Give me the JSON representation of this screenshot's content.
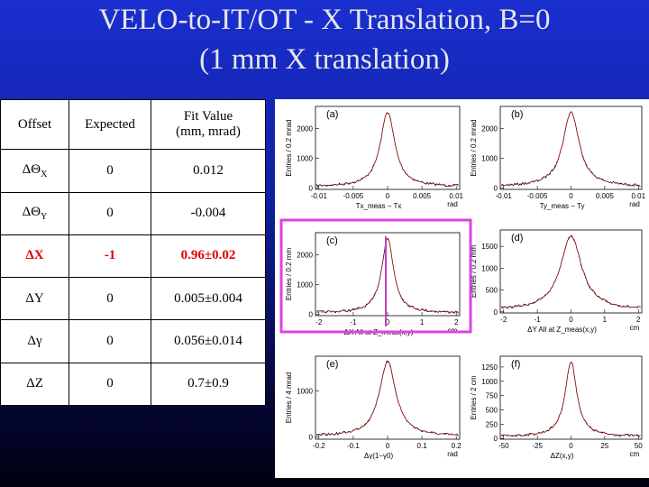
{
  "title": [
    "VELO-to-IT/OT  - X Translation, B=0",
    "(1 mm X translation)"
  ],
  "table": {
    "header": [
      "Offset",
      "Expected",
      "Fit Value",
      "(mm, mrad)"
    ],
    "rows": [
      [
        {
          "symbol": "ΔΘ",
          "sub": "X"
        },
        "0",
        "0.012"
      ],
      [
        {
          "symbol": "ΔΘ",
          "sub": "Y"
        },
        "0",
        "-0.004"
      ],
      [
        {
          "symbol": "ΔX"
        },
        "-1",
        "0.96±0.02"
      ],
      [
        {
          "symbol": "ΔY"
        },
        "0",
        "0.005±0.004"
      ],
      [
        {
          "symbol": "Δγ"
        },
        "0",
        "0.056±0.014"
      ],
      [
        {
          "symbol": "ΔZ"
        },
        "0",
        "0.7±0.9"
      ]
    ],
    "highlight_row": 2
  },
  "figure": {
    "panels": [
      {
        "label": "(a)",
        "yticks": [
          0,
          1000,
          2000
        ],
        "xticks": [
          -0.01,
          -0.005,
          0,
          0.005,
          0.01
        ],
        "xunit": "rad",
        "ylabel": "Entries / 0.2 mrad",
        "caption": "Tx_meas − Tx"
      },
      {
        "label": "(b)",
        "yticks": [
          0,
          1000,
          2000
        ],
        "xticks": [
          -0.01,
          -0.005,
          0,
          0.005,
          0.01
        ],
        "xunit": "rad",
        "ylabel": "Entries / 0.2 mrad",
        "caption": "Ty_meas − Ty"
      },
      {
        "label": "(c)",
        "yticks": [
          0,
          1000,
          2000
        ],
        "xticks": [
          -2,
          -1,
          0,
          1,
          2
        ],
        "xunit": "cm",
        "ylabel": "Entries / 0.2 mm",
        "caption": "ΔX All at Z_meas(x,y)"
      },
      {
        "label": "(d)",
        "yticks": [
          0,
          500,
          1000,
          1500
        ],
        "xticks": [
          -2,
          -1,
          0,
          1,
          2
        ],
        "xunit": "cm",
        "ylabel": "Entries / 0.2 mm",
        "caption": "ΔY All at Z_meas(x,y)"
      },
      {
        "label": "(e)",
        "yticks": [
          0,
          1000
        ],
        "xticks": [
          -0.2,
          -0.1,
          0,
          0.1,
          0.2
        ],
        "xunit": "rad",
        "ylabel": "Entries / 4 mrad",
        "caption": "Δγ(1−γ0)"
      },
      {
        "label": "(f)",
        "yticks": [
          0,
          250,
          500,
          750,
          1000,
          1250
        ],
        "xticks": [
          -50,
          -25,
          0,
          25,
          50
        ],
        "xunit": "cm",
        "ylabel": "Entries / 2 cm",
        "caption": "ΔZ(x,y)"
      }
    ]
  }
}
